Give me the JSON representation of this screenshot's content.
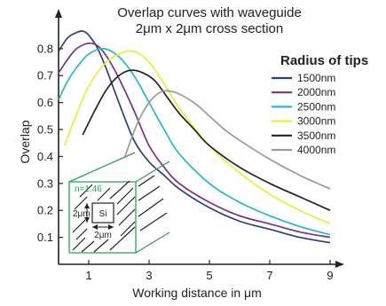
{
  "chart_data": {
    "type": "line",
    "title_line1": "Overlap curves with waveguide",
    "title_line2": "2μm x 2μm cross section",
    "xlabel": "Working distance in μm",
    "ylabel": "Overlap",
    "xlim": [
      0,
      9
    ],
    "ylim": [
      0,
      0.9
    ],
    "x_ticks": [
      1,
      3,
      5,
      7,
      9
    ],
    "y_ticks": [
      0.1,
      0.2,
      0.3,
      0.4,
      0.5,
      0.6,
      0.7,
      0.8
    ],
    "x_tick_labels": [
      "1",
      "3",
      "5",
      "7",
      "9"
    ],
    "y_tick_labels": [
      "0.1",
      "0.2",
      "0.3",
      "0.4",
      "0.5",
      "0.6",
      "0.7",
      "0.8"
    ],
    "grid": false,
    "legend": {
      "title": "Radius of tips",
      "placement": "right"
    },
    "series": [
      {
        "name": "1500nm",
        "color": "#2b3f7a",
        "x": [
          0,
          0.3,
          0.6,
          0.8,
          1.0,
          1.3,
          1.6,
          2.0,
          2.5,
          3.0,
          3.5,
          4.0,
          5.0,
          6.0,
          7.0,
          8.0,
          9.0
        ],
        "y": [
          0.79,
          0.84,
          0.86,
          0.865,
          0.85,
          0.8,
          0.72,
          0.6,
          0.46,
          0.38,
          0.33,
          0.28,
          0.21,
          0.16,
          0.13,
          0.1,
          0.08
        ]
      },
      {
        "name": "2000nm",
        "color": "#7b2d8e",
        "x": [
          0,
          0.3,
          0.6,
          1.0,
          1.3,
          1.6,
          2.0,
          2.5,
          3.0,
          3.5,
          4.0,
          5.0,
          6.0,
          7.0,
          8.0,
          9.0
        ],
        "y": [
          0.71,
          0.76,
          0.8,
          0.82,
          0.81,
          0.77,
          0.69,
          0.57,
          0.44,
          0.36,
          0.3,
          0.23,
          0.18,
          0.15,
          0.12,
          0.1
        ]
      },
      {
        "name": "2500nm",
        "color": "#25b6d0",
        "x": [
          0,
          0.3,
          0.6,
          1.0,
          1.5,
          2.0,
          2.5,
          3.0,
          3.5,
          4.0,
          5.0,
          6.0,
          7.0,
          8.0,
          9.0
        ],
        "y": [
          0.61,
          0.68,
          0.73,
          0.78,
          0.8,
          0.77,
          0.7,
          0.6,
          0.5,
          0.41,
          0.3,
          0.23,
          0.18,
          0.14,
          0.11
        ]
      },
      {
        "name": "3000nm",
        "color": "#ecec3a",
        "x": [
          0.2,
          0.5,
          1.0,
          1.5,
          2.0,
          2.5,
          3.0,
          3.5,
          4.0,
          5.0,
          6.0,
          7.0,
          8.0,
          9.0
        ],
        "y": [
          0.44,
          0.53,
          0.66,
          0.74,
          0.78,
          0.79,
          0.75,
          0.67,
          0.58,
          0.44,
          0.34,
          0.26,
          0.2,
          0.15
        ]
      },
      {
        "name": "3500nm",
        "color": "#222222",
        "x": [
          0.8,
          1.2,
          1.6,
          2.0,
          2.4,
          2.8,
          3.2,
          3.6,
          4.0,
          4.5,
          5.0,
          6.0,
          7.0,
          8.0,
          9.0
        ],
        "y": [
          0.48,
          0.57,
          0.65,
          0.7,
          0.72,
          0.71,
          0.68,
          0.62,
          0.56,
          0.5,
          0.44,
          0.36,
          0.3,
          0.25,
          0.2
        ]
      },
      {
        "name": "4000nm",
        "color": "#9a9a9a",
        "x": [
          2.2,
          2.6,
          3.0,
          3.4,
          3.8,
          4.2,
          4.6,
          5.0,
          5.5,
          6.0,
          7.0,
          8.0,
          9.0
        ],
        "y": [
          0.4,
          0.52,
          0.6,
          0.64,
          0.64,
          0.62,
          0.59,
          0.55,
          0.5,
          0.46,
          0.39,
          0.33,
          0.28
        ]
      }
    ],
    "inset": {
      "n_label": "n=1.46",
      "core_label": "Si",
      "height_label": "2μm",
      "width_label": "2μm",
      "line_color": "#2aa05a"
    }
  }
}
